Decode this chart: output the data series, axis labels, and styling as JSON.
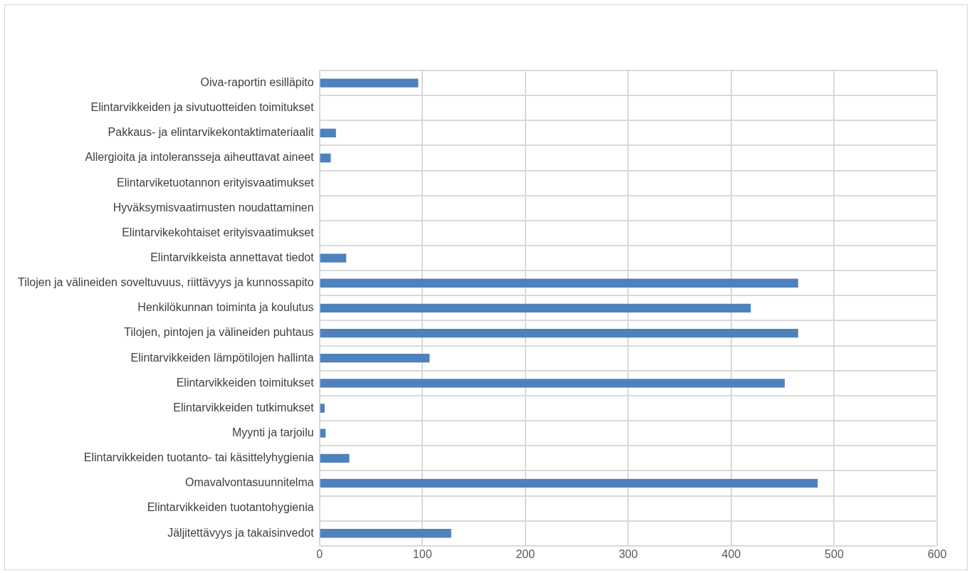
{
  "chart_data": {
    "type": "bar",
    "orientation": "horizontal",
    "categories": [
      "Oiva-raportin esilläpito",
      "Elintarvikkeiden ja sivutuotteiden toimitukset",
      "Pakkaus- ja elintarvikekontaktimateriaalit",
      "Allergioita ja intoleransseja aiheuttavat aineet",
      "Elintarviketuotannon erityisvaatimukset",
      "Hyväksymisvaatimusten noudattaminen",
      "Elintarvikekohtaiset erityisvaatimukset",
      "Elintarvikkeista annettavat tiedot",
      "Tilojen ja välineiden soveltuvuus, riittävyys ja kunnossapito",
      "Henkilökunnan toiminta ja koulutus",
      "Tilojen, pintojen ja välineiden puhtaus",
      "Elintarvikkeiden lämpötilojen hallinta",
      "Elintarvikkeiden toimitukset",
      "Elintarvikkeiden tutkimukset",
      "Myynti ja tarjoilu",
      "Elintarvikkeiden tuotanto- tai käsittelyhygienia",
      "Omavalvontasuunnitelma",
      "Elintarvikkeiden tuotantohygienia",
      "Jäljitettävyys ja takaisinvedot"
    ],
    "values": [
      96,
      0,
      16,
      11,
      0,
      0,
      0,
      26,
      465,
      419,
      465,
      107,
      452,
      5,
      6,
      29,
      484,
      0,
      128
    ],
    "color": "#4f81bd",
    "xlim": [
      0,
      600
    ],
    "xticks": [
      0,
      100,
      200,
      300,
      400,
      500,
      600
    ],
    "grid": true
  }
}
